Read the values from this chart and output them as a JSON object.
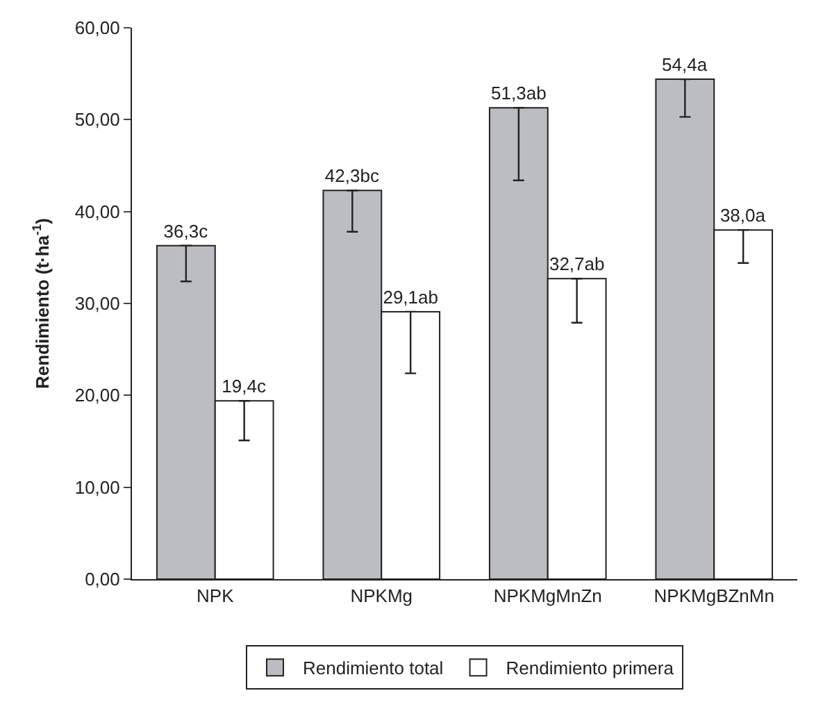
{
  "chart_data": {
    "type": "bar",
    "ylabel": "Rendimiento (t·ha$^{-1}$)",
    "categories": [
      "NPK",
      "NPKMg",
      "NPKMgMnZn",
      "NPKMgBZnMn"
    ],
    "series": [
      {
        "name": "Rendimiento total",
        "color": "#bcbdc0",
        "values": [
          36.3,
          42.3,
          51.3,
          54.4
        ],
        "errors": [
          [
            32.4,
            36.3
          ],
          [
            37.8,
            42.3
          ],
          [
            43.4,
            51.3
          ],
          [
            50.3,
            54.4
          ]
        ],
        "value_labels": [
          "36,3c",
          "42,3bc",
          "51,3ab",
          "54,4a"
        ]
      },
      {
        "name": "Rendimiento primera",
        "color": "#ffffff",
        "values": [
          19.4,
          29.1,
          32.7,
          38.0
        ],
        "errors": [
          [
            15.1,
            19.4
          ],
          [
            22.4,
            29.1
          ],
          [
            27.9,
            32.7
          ],
          [
            34.4,
            38.0
          ]
        ],
        "value_labels": [
          "19,4c",
          "29,1ab",
          "32,7ab",
          "38,0a"
        ]
      }
    ],
    "ylim": [
      0,
      60
    ],
    "yticks": [
      {
        "value": 0,
        "label": "0,00"
      },
      {
        "value": 10,
        "label": "10,00"
      },
      {
        "value": 20,
        "label": "20,00"
      },
      {
        "value": 30,
        "label": "30,00"
      },
      {
        "value": 40,
        "label": "40,00"
      },
      {
        "value": 50,
        "label": "50,00"
      },
      {
        "value": 60,
        "label": "60,00"
      }
    ],
    "legend": "bottom"
  }
}
